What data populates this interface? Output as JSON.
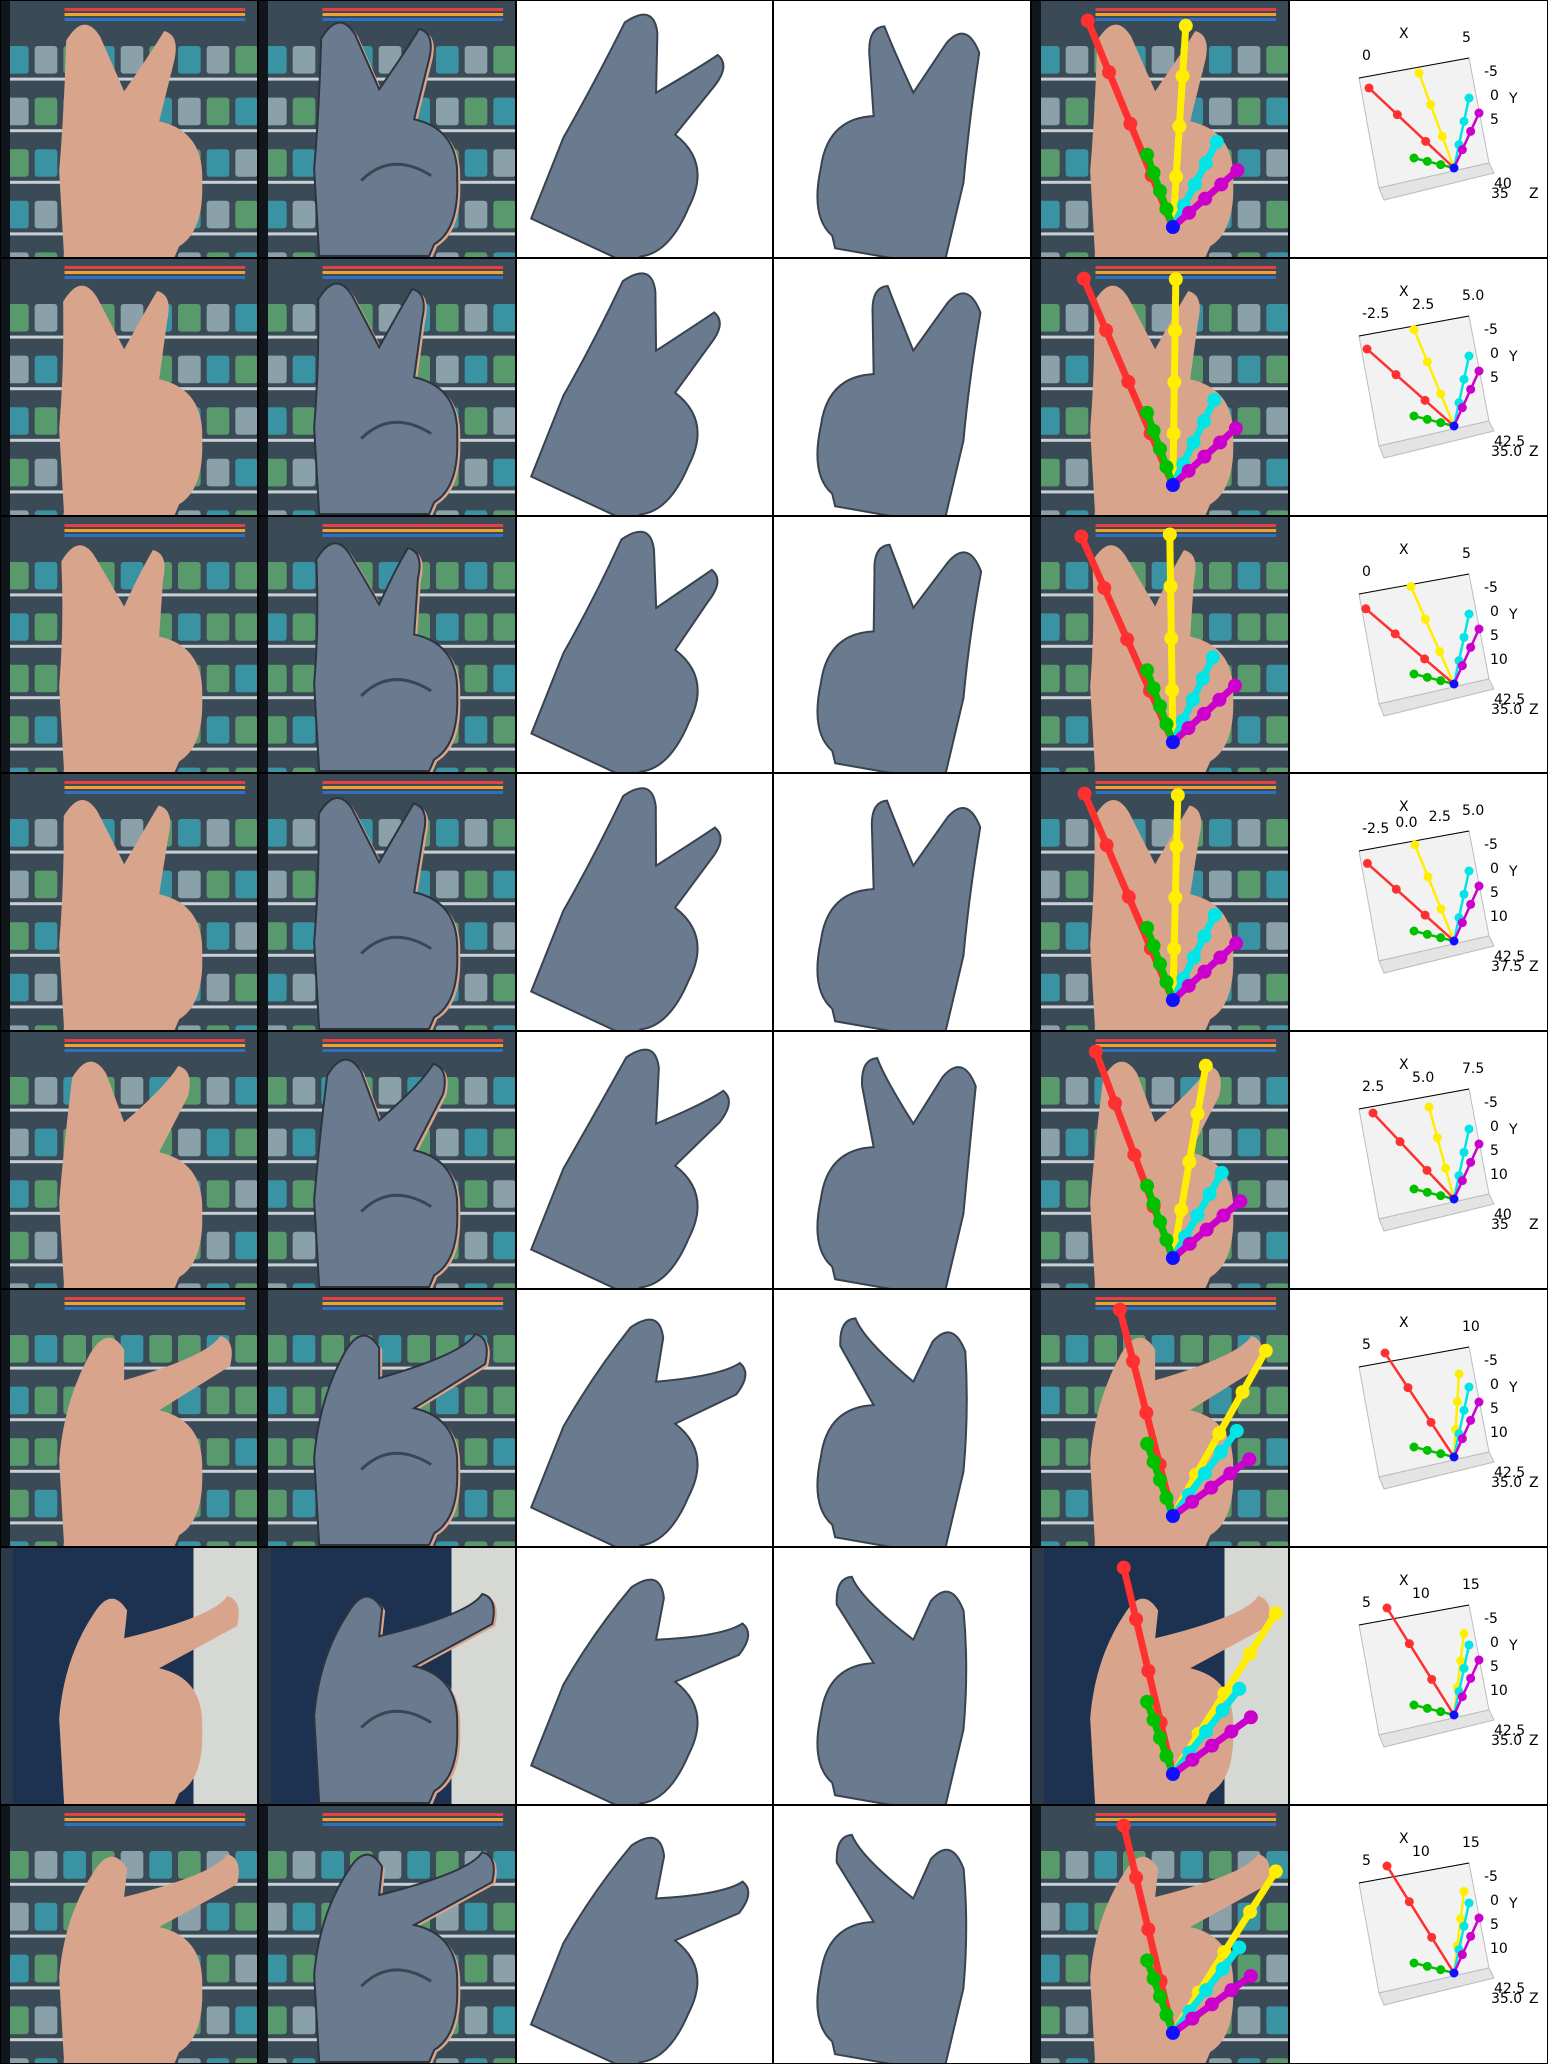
{
  "columns": [
    "photo",
    "mesh-overlay",
    "mesh-front",
    "mesh-side",
    "skeleton-overlay",
    "skeleton-3d-plot"
  ],
  "colors": {
    "mesh": "#6b7b8f",
    "skin": "#d9a48c",
    "grid_line": "#000000",
    "thumb": "#00c000",
    "index": "#ffee00",
    "middle": "#00e5e5",
    "ring": "#cc00cc",
    "pinky": "#ff3030",
    "wrist": "#1010ff"
  },
  "backgrounds": [
    "fridge-shelves",
    "fridge-shelves",
    "fridge-shelves",
    "fridge-shelves",
    "fridge-shelves",
    "fridge-shelves",
    "person-in-blue-shirt",
    "fridge-shelves"
  ],
  "plots": [
    {
      "x_label": "X",
      "x_ticks": [
        "0",
        "5"
      ],
      "y_label": "Y",
      "y_ticks": [
        "-5",
        "0",
        "5"
      ],
      "z_label": "Z",
      "z_ticks": [
        "40",
        "35"
      ]
    },
    {
      "x_label": "X",
      "x_ticks": [
        "-2.5",
        "2.5",
        "5.0"
      ],
      "y_label": "Y",
      "y_ticks": [
        "-5",
        "0",
        "5"
      ],
      "z_label": "Z",
      "z_ticks": [
        "42.5",
        "35.0"
      ]
    },
    {
      "x_label": "X",
      "x_ticks": [
        "0",
        "5"
      ],
      "y_label": "Y",
      "y_ticks": [
        "-5",
        "0",
        "5",
        "10"
      ],
      "z_label": "Z",
      "z_ticks": [
        "42.5",
        "35.0"
      ]
    },
    {
      "x_label": "X",
      "x_ticks": [
        "-2.5",
        "0.0",
        "2.5",
        "5.0"
      ],
      "y_label": "Y",
      "y_ticks": [
        "-5",
        "0",
        "5",
        "10"
      ],
      "z_label": "Z",
      "z_ticks": [
        "42.5",
        "37.5"
      ]
    },
    {
      "x_label": "X",
      "x_ticks": [
        "2.5",
        "5.0",
        "7.5"
      ],
      "y_label": "Y",
      "y_ticks": [
        "-5",
        "0",
        "5",
        "10"
      ],
      "z_label": "Z",
      "z_ticks": [
        "40",
        "35"
      ]
    },
    {
      "x_label": "X",
      "x_ticks": [
        "5",
        "10"
      ],
      "y_label": "Y",
      "y_ticks": [
        "-5",
        "0",
        "5",
        "10"
      ],
      "z_label": "Z",
      "z_ticks": [
        "42.5",
        "35.0"
      ]
    },
    {
      "x_label": "X",
      "x_ticks": [
        "5",
        "10",
        "15"
      ],
      "y_label": "Y",
      "y_ticks": [
        "-5",
        "0",
        "5",
        "10"
      ],
      "z_label": "Z",
      "z_ticks": [
        "42.5",
        "35.0"
      ]
    },
    {
      "x_label": "X",
      "x_ticks": [
        "5",
        "10",
        "15"
      ],
      "y_label": "Y",
      "y_ticks": [
        "-5",
        "0",
        "5",
        "10"
      ],
      "z_label": "Z",
      "z_ticks": [
        "42.5",
        "35.0"
      ]
    }
  ]
}
